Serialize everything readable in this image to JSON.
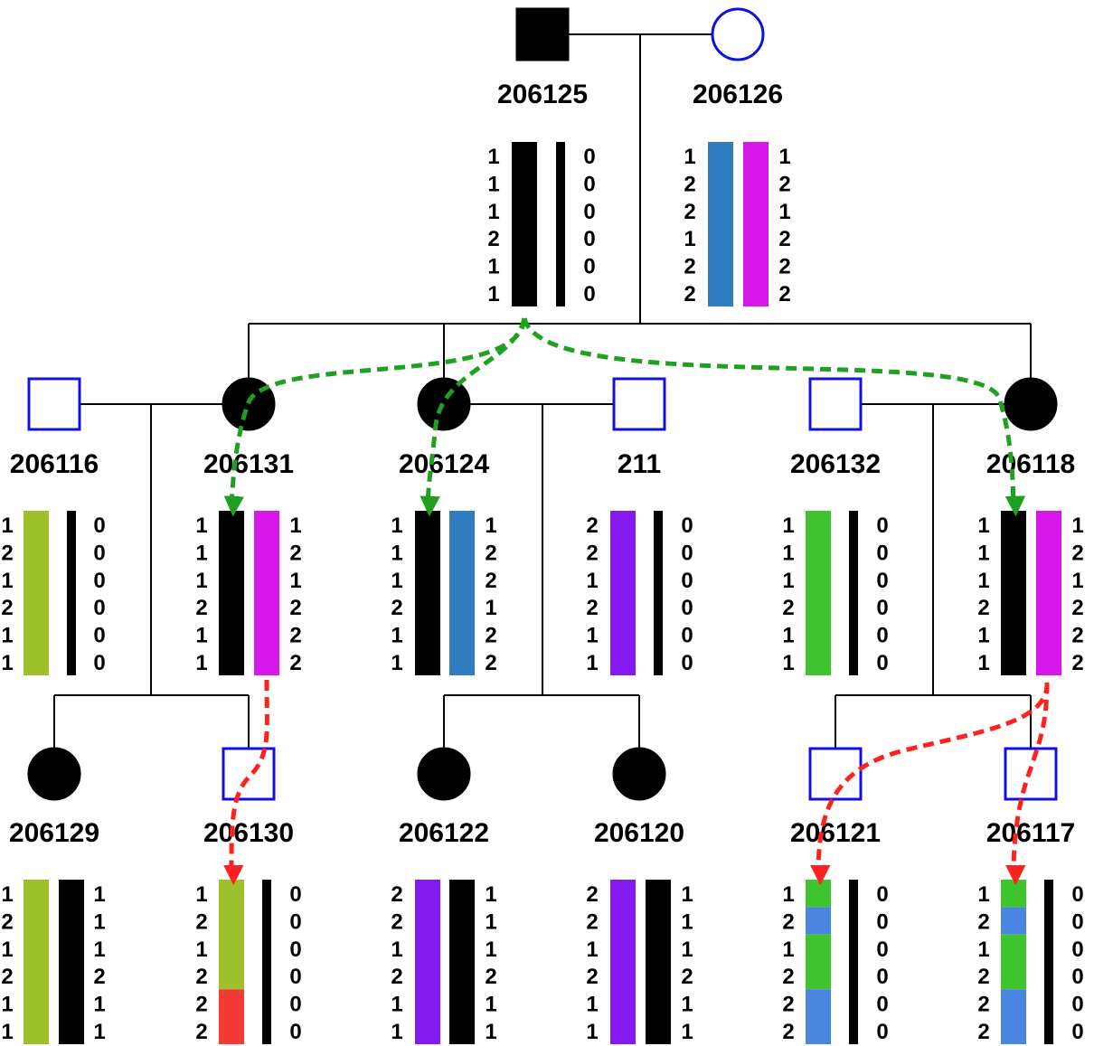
{
  "colors": {
    "affected": "#000000",
    "unaffected_outline": "#1010e0",
    "line": "#000000",
    "paternal_inheritance_arrow": "#20a020",
    "maternal_inheritance_arrow": "#ff2020"
  },
  "haplotype_colors": {
    "black": "#000000",
    "blue": "#2f7cc0",
    "magenta": "#d619ea",
    "olive": "#9dc12b",
    "purple": "#8419f0",
    "green": "#3ec42c",
    "light_blue": "#4a86e0",
    "red": "#f23b35"
  },
  "individuals": [
    {
      "id": "206125",
      "sex": "male",
      "affected": true,
      "left_alleles": [
        "1",
        "1",
        "1",
        "2",
        "1",
        "1"
      ],
      "right_alleles": [
        "0",
        "0",
        "0",
        "0",
        "0",
        "0"
      ],
      "left_bar": [
        {
          "color": "black"
        }
      ],
      "right_bar": [
        {
          "color": "black"
        }
      ],
      "right_thin": true
    },
    {
      "id": "206126",
      "sex": "female",
      "affected": false,
      "left_alleles": [
        "1",
        "2",
        "2",
        "1",
        "2",
        "2"
      ],
      "right_alleles": [
        "1",
        "2",
        "1",
        "2",
        "2",
        "2"
      ],
      "left_bar": [
        {
          "color": "blue"
        }
      ],
      "right_bar": [
        {
          "color": "magenta"
        }
      ],
      "right_thin": false
    },
    {
      "id": "206116",
      "sex": "male",
      "affected": false,
      "left_alleles": [
        "1",
        "2",
        "1",
        "2",
        "1",
        "1"
      ],
      "right_alleles": [
        "0",
        "0",
        "0",
        "0",
        "0",
        "0"
      ],
      "left_bar": [
        {
          "color": "olive"
        }
      ],
      "right_bar": [
        {
          "color": "black"
        }
      ],
      "right_thin": true
    },
    {
      "id": "206131",
      "sex": "female",
      "affected": true,
      "left_alleles": [
        "1",
        "1",
        "1",
        "2",
        "1",
        "1"
      ],
      "right_alleles": [
        "1",
        "2",
        "1",
        "2",
        "2",
        "2"
      ],
      "left_bar": [
        {
          "color": "black"
        }
      ],
      "right_bar": [
        {
          "color": "magenta"
        }
      ],
      "right_thin": false
    },
    {
      "id": "206124",
      "sex": "female",
      "affected": true,
      "left_alleles": [
        "1",
        "1",
        "1",
        "2",
        "1",
        "1"
      ],
      "right_alleles": [
        "1",
        "2",
        "2",
        "1",
        "2",
        "2"
      ],
      "left_bar": [
        {
          "color": "black"
        }
      ],
      "right_bar": [
        {
          "color": "blue"
        }
      ],
      "right_thin": false
    },
    {
      "id": "211",
      "sex": "male",
      "affected": false,
      "left_alleles": [
        "2",
        "2",
        "1",
        "2",
        "1",
        "1"
      ],
      "right_alleles": [
        "0",
        "0",
        "0",
        "0",
        "0",
        "0"
      ],
      "left_bar": [
        {
          "color": "purple"
        }
      ],
      "right_bar": [
        {
          "color": "black"
        }
      ],
      "right_thin": true
    },
    {
      "id": "206132",
      "sex": "male",
      "affected": false,
      "left_alleles": [
        "1",
        "1",
        "1",
        "2",
        "1",
        "1"
      ],
      "right_alleles": [
        "0",
        "0",
        "0",
        "0",
        "0",
        "0"
      ],
      "left_bar": [
        {
          "color": "green"
        }
      ],
      "right_bar": [
        {
          "color": "black"
        }
      ],
      "right_thin": true
    },
    {
      "id": "206118",
      "sex": "female",
      "affected": true,
      "left_alleles": [
        "1",
        "1",
        "1",
        "2",
        "1",
        "1"
      ],
      "right_alleles": [
        "1",
        "2",
        "1",
        "2",
        "2",
        "2"
      ],
      "left_bar": [
        {
          "color": "black"
        }
      ],
      "right_bar": [
        {
          "color": "magenta"
        }
      ],
      "right_thin": false
    },
    {
      "id": "206129",
      "sex": "female",
      "affected": true,
      "left_alleles": [
        "1",
        "2",
        "1",
        "2",
        "1",
        "1"
      ],
      "right_alleles": [
        "1",
        "1",
        "1",
        "2",
        "1",
        "1"
      ],
      "left_bar": [
        {
          "color": "olive"
        }
      ],
      "right_bar": [
        {
          "color": "black"
        }
      ],
      "right_thin": false
    },
    {
      "id": "206130",
      "sex": "male",
      "affected": false,
      "left_alleles": [
        "1",
        "2",
        "1",
        "2",
        "2",
        "2"
      ],
      "right_alleles": [
        "0",
        "0",
        "0",
        "0",
        "0",
        "0"
      ],
      "left_bar": [
        {
          "color": "olive",
          "from": 0,
          "to": 4
        },
        {
          "color": "red",
          "from": 4,
          "to": 6
        }
      ],
      "right_bar": [
        {
          "color": "black"
        }
      ],
      "right_thin": true
    },
    {
      "id": "206122",
      "sex": "female",
      "affected": true,
      "left_alleles": [
        "2",
        "2",
        "1",
        "2",
        "1",
        "1"
      ],
      "right_alleles": [
        "1",
        "1",
        "1",
        "2",
        "1",
        "1"
      ],
      "left_bar": [
        {
          "color": "purple"
        }
      ],
      "right_bar": [
        {
          "color": "black"
        }
      ],
      "right_thin": false
    },
    {
      "id": "206120",
      "sex": "female",
      "affected": true,
      "left_alleles": [
        "2",
        "2",
        "1",
        "2",
        "1",
        "1"
      ],
      "right_alleles": [
        "1",
        "1",
        "1",
        "2",
        "1",
        "1"
      ],
      "left_bar": [
        {
          "color": "purple"
        }
      ],
      "right_bar": [
        {
          "color": "black"
        }
      ],
      "right_thin": false
    },
    {
      "id": "206121",
      "sex": "male",
      "affected": false,
      "left_alleles": [
        "1",
        "2",
        "1",
        "2",
        "2",
        "2"
      ],
      "right_alleles": [
        "0",
        "0",
        "0",
        "0",
        "0",
        "0"
      ],
      "left_bar": [
        {
          "color": "green",
          "from": 0,
          "to": 1
        },
        {
          "color": "light_blue",
          "from": 1,
          "to": 2
        },
        {
          "color": "green",
          "from": 2,
          "to": 4
        },
        {
          "color": "light_blue",
          "from": 4,
          "to": 6
        }
      ],
      "right_bar": [
        {
          "color": "black"
        }
      ],
      "right_thin": true
    },
    {
      "id": "206117",
      "sex": "male",
      "affected": false,
      "left_alleles": [
        "1",
        "2",
        "1",
        "2",
        "2",
        "2"
      ],
      "right_alleles": [
        "0",
        "0",
        "0",
        "0",
        "0",
        "0"
      ],
      "left_bar": [
        {
          "color": "green",
          "from": 0,
          "to": 1
        },
        {
          "color": "light_blue",
          "from": 1,
          "to": 2
        },
        {
          "color": "green",
          "from": 2,
          "to": 4
        },
        {
          "color": "light_blue",
          "from": 4,
          "to": 6
        }
      ],
      "right_bar": [
        {
          "color": "black"
        }
      ],
      "right_thin": true
    }
  ]
}
